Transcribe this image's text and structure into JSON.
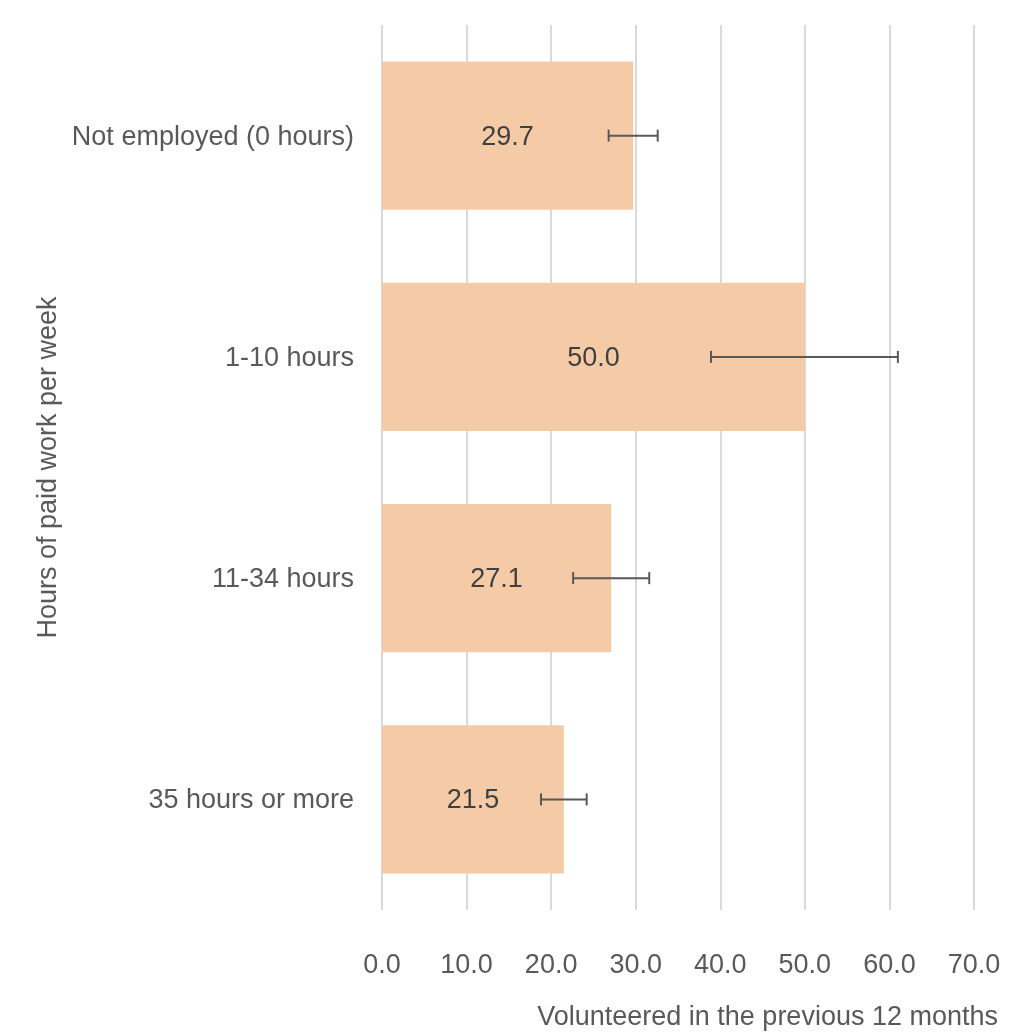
{
  "chart_data": {
    "type": "bar",
    "orientation": "horizontal",
    "xlabel": "Volunteered in the previous 12 months",
    "ylabel": "Hours of paid work per week",
    "categories": [
      "Not employed (0 hours)",
      "1-10 hours",
      "11-34 hours",
      "35 hours or more"
    ],
    "values": [
      29.7,
      50.0,
      27.1,
      21.5
    ],
    "color": "#f5cba7",
    "data_labels": true,
    "value_labels": [
      "29.7",
      "50.0",
      "27.1",
      "21.5"
    ],
    "errors": [
      [
        26.8,
        32.6
      ],
      [
        38.9,
        61.0
      ],
      [
        22.6,
        31.6
      ],
      [
        18.8,
        24.2
      ]
    ],
    "xlim": [
      0,
      70
    ],
    "xticks": [
      {
        "value": 0,
        "label": "0.0"
      },
      {
        "value": 10,
        "label": "10.0"
      },
      {
        "value": 20,
        "label": "20.0"
      },
      {
        "value": 30,
        "label": "30.0"
      },
      {
        "value": 40,
        "label": "40.0"
      },
      {
        "value": 50,
        "label": "50.0"
      },
      {
        "value": 60,
        "label": "60.0"
      },
      {
        "value": 70,
        "label": "70.0"
      }
    ],
    "grid": "x"
  }
}
